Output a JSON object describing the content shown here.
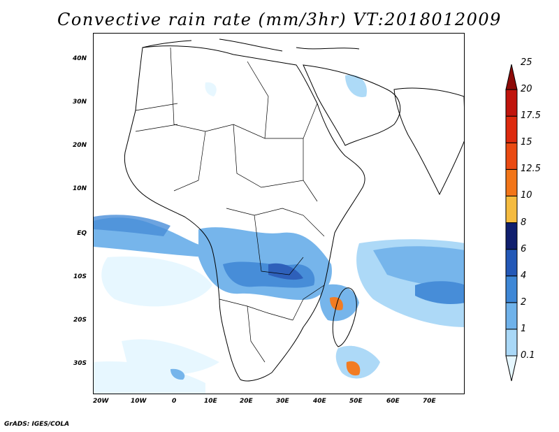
{
  "title": "Convective rain rate (mm/3hr) VT:2018012009",
  "credit": "GrADS: IGES/COLA",
  "map": {
    "lat_labels": [
      "40N",
      "30N",
      "20N",
      "10N",
      "EQ",
      "10S",
      "20S",
      "30S"
    ],
    "lon_labels": [
      "20W",
      "10W",
      "0",
      "10E",
      "20E",
      "30E",
      "40E",
      "50E",
      "60E",
      "70E"
    ]
  },
  "colorbar": {
    "levels": [
      "0.1",
      "1",
      "2",
      "4",
      "6",
      "8",
      "10",
      "12.5",
      "15",
      "17.5",
      "20",
      "25"
    ],
    "colors": [
      "#e6f7ff",
      "#a9d8f7",
      "#6fb2ea",
      "#3e87d6",
      "#2358b7",
      "#101f6e",
      "#f5bb3f",
      "#f27518",
      "#ea4a12",
      "#dd2a0e",
      "#c0140c",
      "#8d0a08"
    ]
  }
}
